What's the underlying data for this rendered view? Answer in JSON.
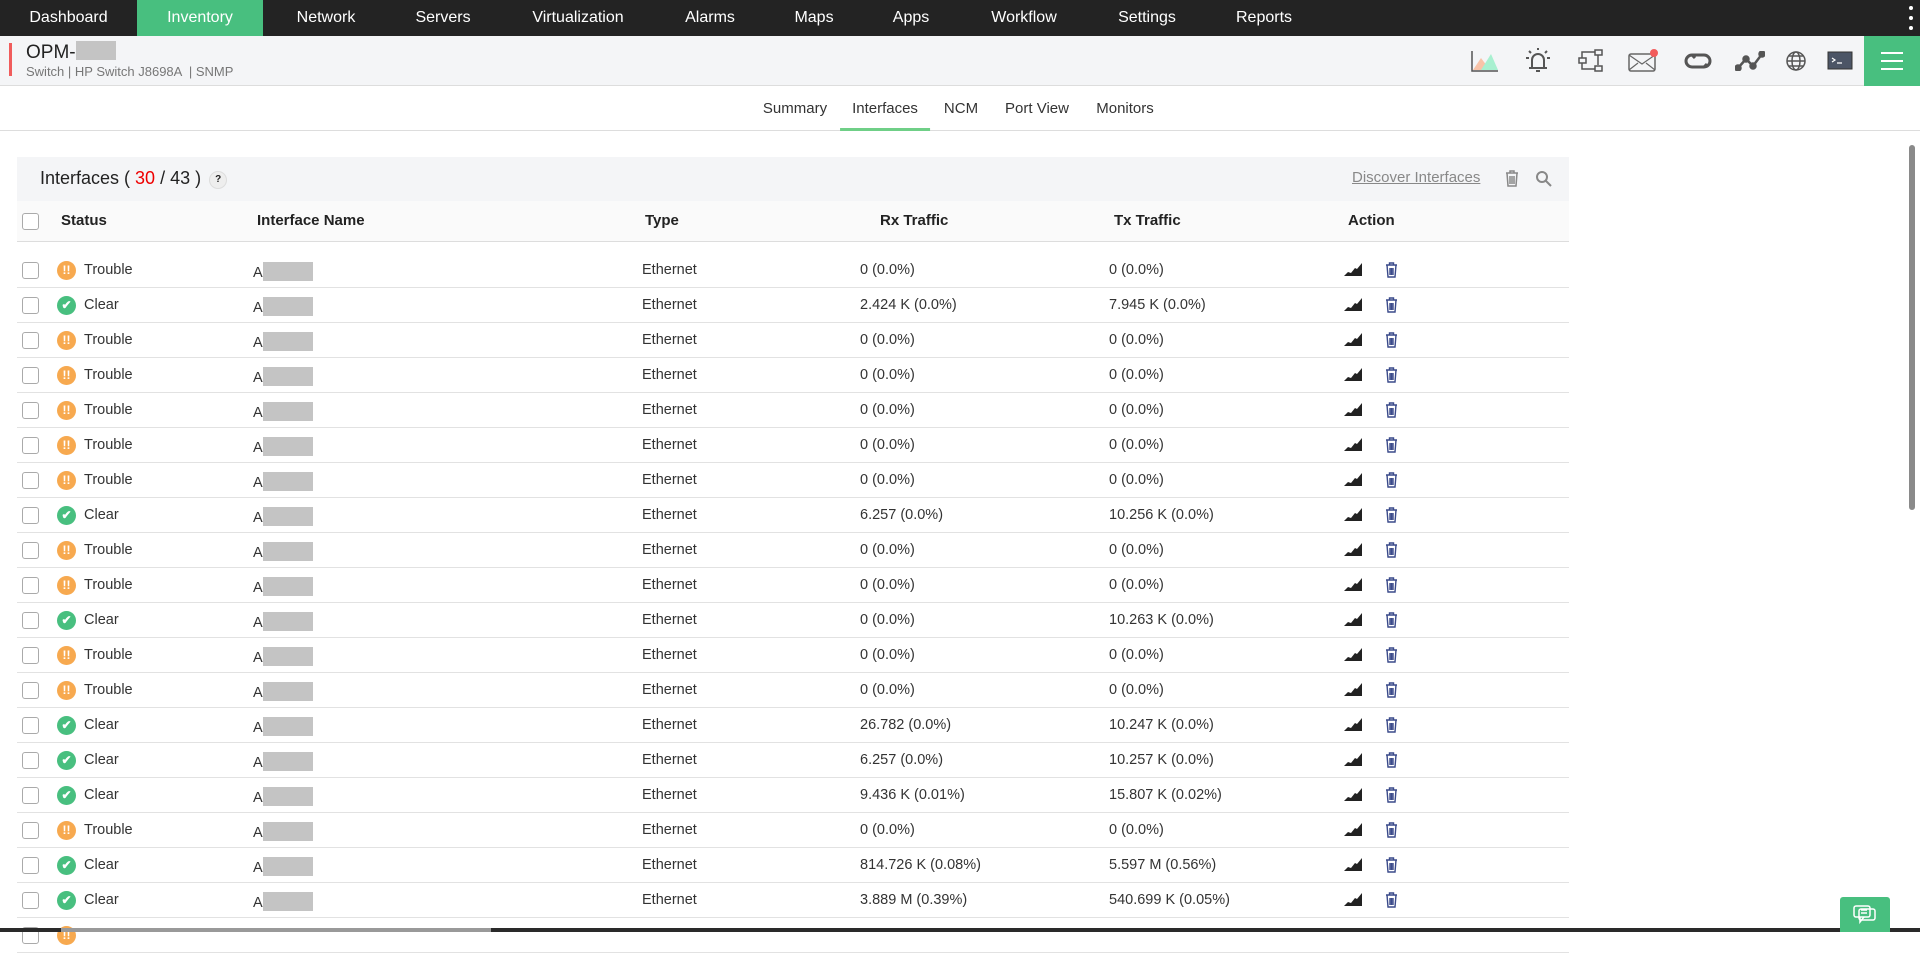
{
  "topnav": {
    "items": [
      "Dashboard",
      "Inventory",
      "Network",
      "Servers",
      "Virtualization",
      "Alarms",
      "Maps",
      "Apps",
      "Workflow",
      "Settings",
      "Reports"
    ],
    "active": "Inventory"
  },
  "device": {
    "name_prefix": "OPM-",
    "category": "Switch",
    "model": "HP Switch J8698A",
    "protocol": "SNMP"
  },
  "header_icons": [
    "area-chart-icon",
    "alarm-bell-icon",
    "workflow-icon",
    "mail-icon",
    "sync-icon",
    "graph-icon",
    "globe-icon",
    "terminal-icon"
  ],
  "tabs": {
    "items": [
      "Summary",
      "Interfaces",
      "NCM",
      "Port View",
      "Monitors"
    ],
    "active": "Interfaces"
  },
  "panel": {
    "title": "Interfaces",
    "shown": "30",
    "total": "43",
    "help": "?",
    "discover_label": "Discover Interfaces"
  },
  "columns": {
    "status": "Status",
    "name": "Interface Name",
    "type": "Type",
    "rx": "Rx Traffic",
    "tx": "Tx Traffic",
    "action": "Action"
  },
  "colors": {
    "nav_bg": "#232323",
    "accent": "#48bf7f",
    "trouble": "#f7a94f",
    "clear": "#48bf7f",
    "count": "#e00000"
  },
  "rows": [
    {
      "status": "Trouble",
      "name": "A",
      "type": "Ethernet",
      "rx": "0 (0.0%)",
      "tx": "0 (0.0%)"
    },
    {
      "status": "Clear",
      "name": "A",
      "type": "Ethernet",
      "rx": "2.424 K (0.0%)",
      "tx": "7.945 K (0.0%)"
    },
    {
      "status": "Trouble",
      "name": "A",
      "type": "Ethernet",
      "rx": "0 (0.0%)",
      "tx": "0 (0.0%)"
    },
    {
      "status": "Trouble",
      "name": "A",
      "type": "Ethernet",
      "rx": "0 (0.0%)",
      "tx": "0 (0.0%)"
    },
    {
      "status": "Trouble",
      "name": "A",
      "type": "Ethernet",
      "rx": "0 (0.0%)",
      "tx": "0 (0.0%)"
    },
    {
      "status": "Trouble",
      "name": "A",
      "type": "Ethernet",
      "rx": "0 (0.0%)",
      "tx": "0 (0.0%)"
    },
    {
      "status": "Trouble",
      "name": "A",
      "type": "Ethernet",
      "rx": "0 (0.0%)",
      "tx": "0 (0.0%)"
    },
    {
      "status": "Clear",
      "name": "A",
      "type": "Ethernet",
      "rx": "6.257 (0.0%)",
      "tx": "10.256 K (0.0%)"
    },
    {
      "status": "Trouble",
      "name": "A",
      "type": "Ethernet",
      "rx": "0 (0.0%)",
      "tx": "0 (0.0%)"
    },
    {
      "status": "Trouble",
      "name": "A",
      "type": "Ethernet",
      "rx": "0 (0.0%)",
      "tx": "0 (0.0%)"
    },
    {
      "status": "Clear",
      "name": "A",
      "type": "Ethernet",
      "rx": "0 (0.0%)",
      "tx": "10.263 K (0.0%)"
    },
    {
      "status": "Trouble",
      "name": "A",
      "type": "Ethernet",
      "rx": "0 (0.0%)",
      "tx": "0 (0.0%)"
    },
    {
      "status": "Trouble",
      "name": "A",
      "type": "Ethernet",
      "rx": "0 (0.0%)",
      "tx": "0 (0.0%)"
    },
    {
      "status": "Clear",
      "name": "A",
      "type": "Ethernet",
      "rx": "26.782 (0.0%)",
      "tx": "10.247 K (0.0%)"
    },
    {
      "status": "Clear",
      "name": "A",
      "type": "Ethernet",
      "rx": "6.257 (0.0%)",
      "tx": "10.257 K (0.0%)"
    },
    {
      "status": "Clear",
      "name": "A",
      "type": "Ethernet",
      "rx": "9.436 K (0.01%)",
      "tx": "15.807 K (0.02%)"
    },
    {
      "status": "Trouble",
      "name": "A",
      "type": "Ethernet",
      "rx": "0 (0.0%)",
      "tx": "0 (0.0%)"
    },
    {
      "status": "Clear",
      "name": "A",
      "type": "Ethernet",
      "rx": "814.726 K (0.08%)",
      "tx": "5.597 M (0.56%)"
    },
    {
      "status": "Clear",
      "name": "A",
      "type": "Ethernet",
      "rx": "3.889 M (0.39%)",
      "tx": "540.699 K (0.05%)"
    }
  ]
}
